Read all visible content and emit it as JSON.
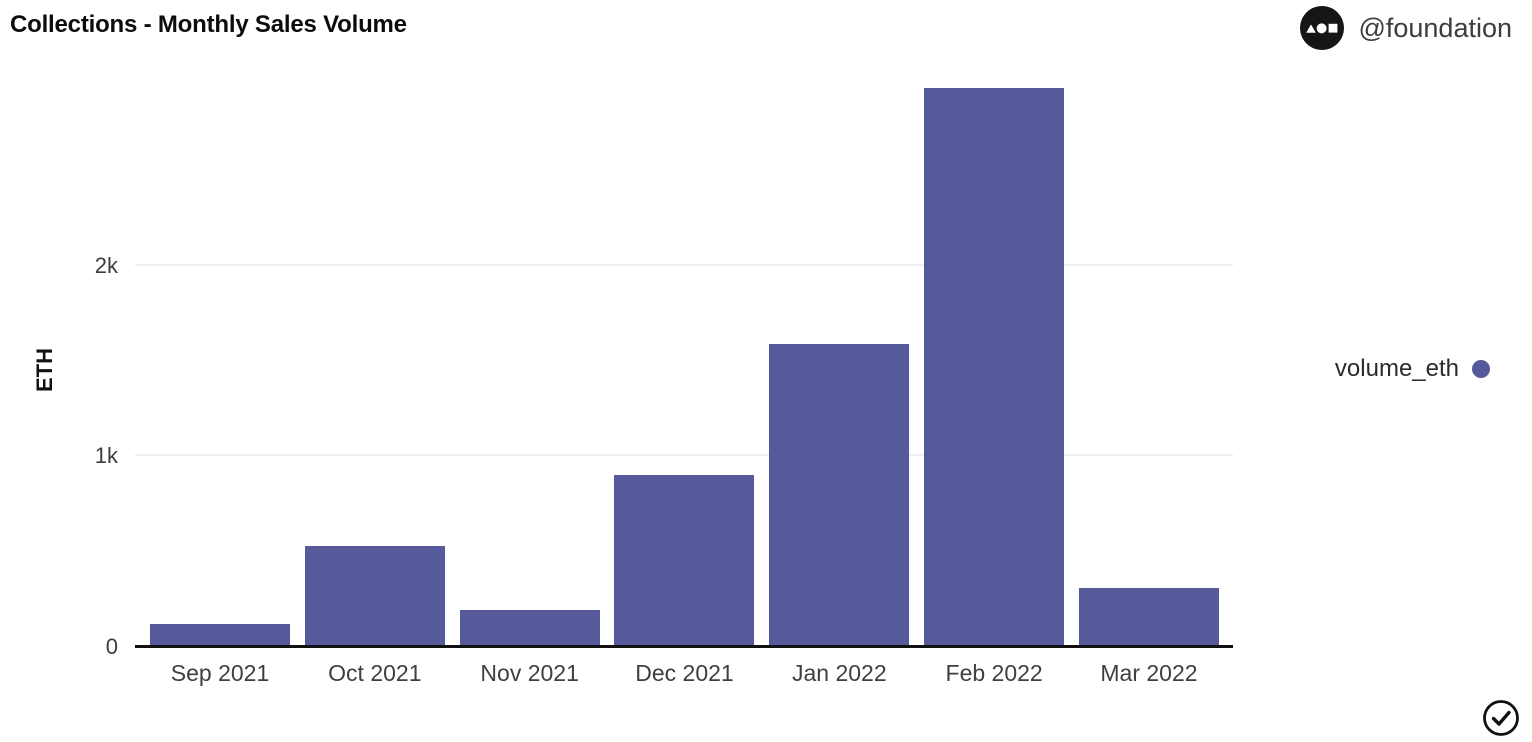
{
  "header": {
    "title": "Collections - Monthly Sales Volume",
    "attribution": {
      "handle": "@foundation",
      "logo_icon": "dune-logo-icon"
    }
  },
  "legend": {
    "label": "volume_eth",
    "marker_color": "#565a9b"
  },
  "footer": {
    "status_icon": "check-circle-icon"
  },
  "colors": {
    "bar": "#565a9b",
    "axis_line": "#111111",
    "gridline": "#efefef",
    "tick_text": "#3d3d3d",
    "title_text": "#0c0c0c"
  },
  "chart_data": {
    "type": "bar",
    "title": "Collections - Monthly Sales Volume",
    "categories": [
      "Sep 2021",
      "Oct 2021",
      "Nov 2021",
      "Dec 2021",
      "Jan 2022",
      "Feb 2022",
      "Mar 2022"
    ],
    "series": [
      {
        "name": "volume_eth",
        "values": [
          120,
          530,
          195,
          900,
          1590,
          2930,
          310
        ]
      }
    ],
    "xlabel": "",
    "ylabel": "ETH",
    "ylim": [
      0,
      2990
    ],
    "yticks": [
      {
        "value": 0,
        "label": "0"
      },
      {
        "value": 1000,
        "label": "1k"
      },
      {
        "value": 2000,
        "label": "2k"
      }
    ],
    "grid": "horizontal",
    "legend_position": "right",
    "bar_color": "#565a9b"
  }
}
